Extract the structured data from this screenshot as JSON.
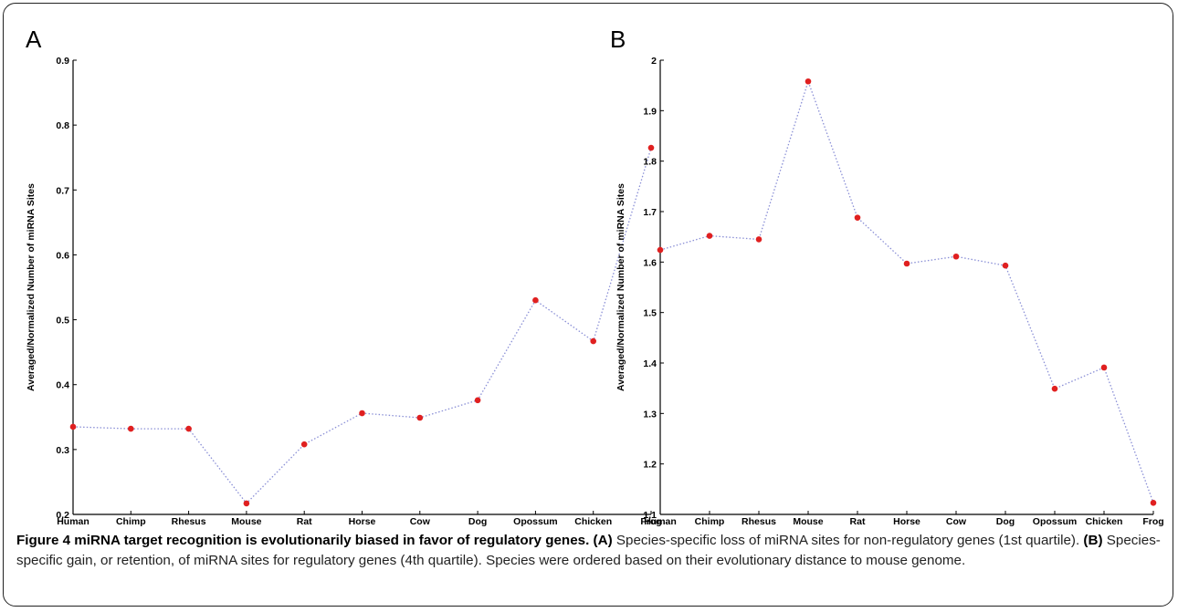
{
  "caption": {
    "title": "Figure 4 miRNA target recognition is evolutionarily biased in favor of regulatory genes.",
    "a_tag": "(A)",
    "a_text": "Species-specific loss of miRNA sites for non-regulatory genes (1st quartile).",
    "b_tag": "(B)",
    "b_text": "Species-specific gain, or retention, of miRNA sites for regulatory genes (4th quartile). Species were ordered based on their evolutionary distance to mouse genome."
  },
  "colors": {
    "line": "#8a8fd6",
    "marker": "#e02020",
    "axis": "#000000"
  },
  "chart_data": [
    {
      "panel": "A",
      "type": "line",
      "categories": [
        "Human",
        "Chimp",
        "Rhesus",
        "Mouse",
        "Rat",
        "Horse",
        "Cow",
        "Dog",
        "Opossum",
        "Chicken",
        "Frog"
      ],
      "values": [
        0.335,
        0.332,
        0.332,
        0.217,
        0.308,
        0.356,
        0.349,
        0.376,
        0.53,
        0.467,
        0.765
      ],
      "ylabel": "Averaged/Normalized Number of miRNA Sites",
      "ylim": [
        0.2,
        0.9
      ],
      "yticks": [
        "0.2",
        "0.3",
        "0.4",
        "0.5",
        "0.6",
        "0.7",
        "0.8",
        "0.9"
      ],
      "line_style": "dotted",
      "marker": "circle",
      "grid": false
    },
    {
      "panel": "B",
      "type": "line",
      "categories": [
        "Human",
        "Chimp",
        "Rhesus",
        "Mouse",
        "Rat",
        "Horse",
        "Cow",
        "Dog",
        "Opossum",
        "Chicken",
        "Frog"
      ],
      "values": [
        1.624,
        1.652,
        1.645,
        1.958,
        1.688,
        1.597,
        1.611,
        1.593,
        1.349,
        1.391,
        1.123
      ],
      "ylabel": "Averaged/Normalized Number of miRNA Sites",
      "ylim": [
        1.1,
        2.0
      ],
      "yticks": [
        "1.1",
        "1.2",
        "1.3",
        "1.4",
        "1.5",
        "1.6",
        "1.7",
        "1.8",
        "1.9",
        "2"
      ],
      "line_style": "dotted",
      "marker": "circle",
      "grid": false
    }
  ]
}
